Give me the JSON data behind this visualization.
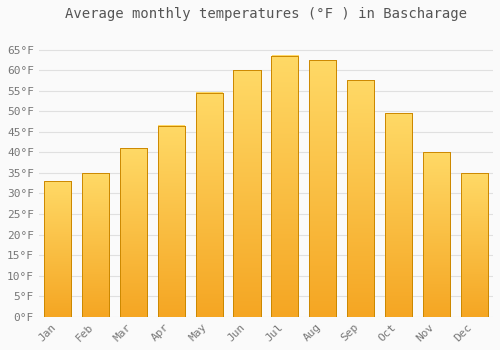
{
  "title": "Average monthly temperatures (°F ) in Bascharage",
  "months": [
    "Jan",
    "Feb",
    "Mar",
    "Apr",
    "May",
    "Jun",
    "Jul",
    "Aug",
    "Sep",
    "Oct",
    "Nov",
    "Dec"
  ],
  "values": [
    33,
    35,
    41,
    46.5,
    54.5,
    60,
    63.5,
    62.5,
    57.5,
    49.5,
    40,
    35
  ],
  "bar_color_top": "#FFD966",
  "bar_color_bottom": "#F5A623",
  "bar_edge_color": "#CC8800",
  "ylim": [
    0,
    70
  ],
  "yticks": [
    0,
    5,
    10,
    15,
    20,
    25,
    30,
    35,
    40,
    45,
    50,
    55,
    60,
    65
  ],
  "ylabel_suffix": "°F",
  "background_color": "#FAFAFA",
  "grid_color": "#E0E0E0",
  "title_fontsize": 10,
  "tick_fontsize": 8,
  "font_family": "monospace"
}
